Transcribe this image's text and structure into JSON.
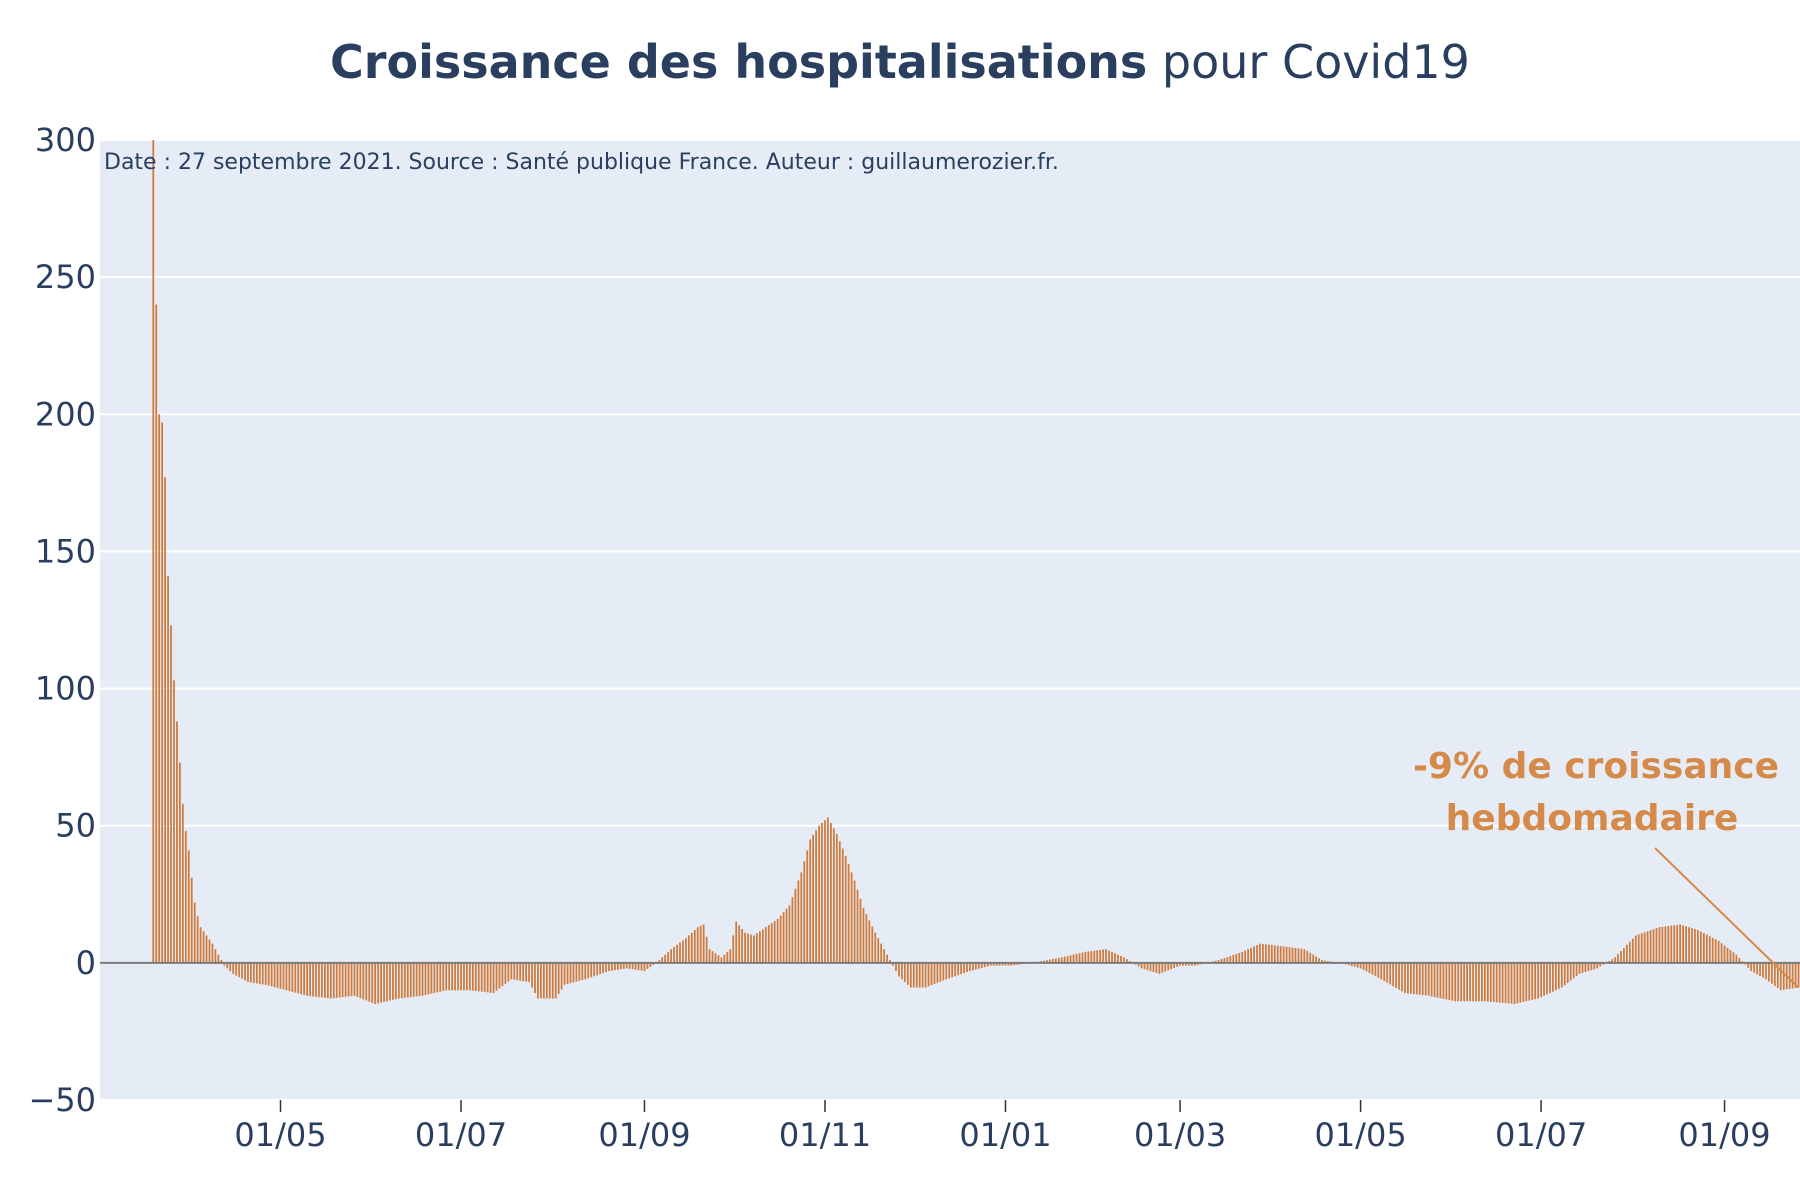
{
  "chart_data": {
    "type": "bar",
    "title_bold": "Croissance des hospitalisations",
    "title_rest": " pour Covid19",
    "subtitle": "Date : 27 septembre 2021. Source : Santé publique France. Auteur : guillaumerozier.fr.",
    "xlabel": "",
    "ylabel": "",
    "x_start": "2020-03-19",
    "x_end": "2021-09-26",
    "ylim": [
      -50,
      300
    ],
    "yticks": [
      -50,
      0,
      50,
      100,
      150,
      200,
      250,
      300
    ],
    "ytick_labels": [
      "−50",
      "0",
      "50",
      "100",
      "150",
      "200",
      "250",
      "300"
    ],
    "xtick_labels": [
      "01/05",
      "01/07",
      "01/09",
      "01/11",
      "01/01",
      "01/03",
      "01/05",
      "01/07",
      "01/09"
    ],
    "xtick_dates": [
      "2020-05-01",
      "2020-07-01",
      "2020-09-01",
      "2020-11-01",
      "2021-01-01",
      "2021-03-01",
      "2021-05-01",
      "2021-07-01",
      "2021-09-01"
    ],
    "grid": true,
    "colors": {
      "bar": "#d07a3c",
      "annotation": "#d68a4a",
      "plot_bg": "#e5ecf6",
      "grid": "#ffffff",
      "zero_line": "#7a7a7a",
      "text": "#2a3f5f"
    },
    "annotation": {
      "line1": "-9% de croissance",
      "line2": "hebdomadaire"
    },
    "series": [
      {
        "anchors": [
          [
            "2020-03-19",
            300
          ],
          [
            "2020-03-20",
            240
          ],
          [
            "2020-03-21",
            200
          ],
          [
            "2020-03-22",
            197
          ],
          [
            "2020-03-23",
            177
          ],
          [
            "2020-03-24",
            141
          ],
          [
            "2020-03-25",
            123
          ],
          [
            "2020-03-26",
            103
          ],
          [
            "2020-03-27",
            88
          ],
          [
            "2020-03-28",
            73
          ],
          [
            "2020-03-29",
            58
          ],
          [
            "2020-03-30",
            48
          ],
          [
            "2020-03-31",
            41
          ],
          [
            "2020-04-01",
            31
          ],
          [
            "2020-04-02",
            22
          ],
          [
            "2020-04-03",
            17
          ],
          [
            "2020-04-04",
            13
          ],
          [
            "2020-04-06",
            10
          ],
          [
            "2020-04-08",
            7
          ],
          [
            "2020-04-10",
            3
          ],
          [
            "2020-04-12",
            -1
          ],
          [
            "2020-04-15",
            -4
          ],
          [
            "2020-04-20",
            -7
          ],
          [
            "2020-04-26",
            -8
          ],
          [
            "2020-05-03",
            -10
          ],
          [
            "2020-05-10",
            -12
          ],
          [
            "2020-05-18",
            -13
          ],
          [
            "2020-05-26",
            -12
          ],
          [
            "2020-06-02",
            -15
          ],
          [
            "2020-06-10",
            -13
          ],
          [
            "2020-06-18",
            -12
          ],
          [
            "2020-06-26",
            -10
          ],
          [
            "2020-07-04",
            -10
          ],
          [
            "2020-07-12",
            -11
          ],
          [
            "2020-07-18",
            -6
          ],
          [
            "2020-07-24",
            -7
          ],
          [
            "2020-07-27",
            -13
          ],
          [
            "2020-08-02",
            -13
          ],
          [
            "2020-08-05",
            -8
          ],
          [
            "2020-08-12",
            -6
          ],
          [
            "2020-08-20",
            -3
          ],
          [
            "2020-08-26",
            -2
          ],
          [
            "2020-09-01",
            -3
          ],
          [
            "2020-09-05",
            0
          ],
          [
            "2020-09-10",
            5
          ],
          [
            "2020-09-15",
            9
          ],
          [
            "2020-09-19",
            13
          ],
          [
            "2020-09-21",
            14
          ],
          [
            "2020-09-23",
            5
          ],
          [
            "2020-09-27",
            2
          ],
          [
            "2020-09-30",
            5
          ],
          [
            "2020-10-02",
            15
          ],
          [
            "2020-10-05",
            11
          ],
          [
            "2020-10-08",
            10
          ],
          [
            "2020-10-12",
            13
          ],
          [
            "2020-10-16",
            16
          ],
          [
            "2020-10-20",
            21
          ],
          [
            "2020-10-24",
            33
          ],
          [
            "2020-10-27",
            45
          ],
          [
            "2020-10-30",
            50
          ],
          [
            "2020-11-02",
            53
          ],
          [
            "2020-11-05",
            47
          ],
          [
            "2020-11-08",
            39
          ],
          [
            "2020-11-11",
            30
          ],
          [
            "2020-11-14",
            20
          ],
          [
            "2020-11-18",
            11
          ],
          [
            "2020-11-22",
            3
          ],
          [
            "2020-11-26",
            -5
          ],
          [
            "2020-11-30",
            -9
          ],
          [
            "2020-12-05",
            -9
          ],
          [
            "2020-12-12",
            -6
          ],
          [
            "2020-12-20",
            -3
          ],
          [
            "2020-12-27",
            -1
          ],
          [
            "2021-01-03",
            -1
          ],
          [
            "2021-01-10",
            0
          ],
          [
            "2021-01-15",
            1
          ],
          [
            "2021-01-20",
            2
          ],
          [
            "2021-01-28",
            4
          ],
          [
            "2021-02-04",
            5
          ],
          [
            "2021-02-10",
            2
          ],
          [
            "2021-02-16",
            -2
          ],
          [
            "2021-02-22",
            -4
          ],
          [
            "2021-03-01",
            -1
          ],
          [
            "2021-03-06",
            -1
          ],
          [
            "2021-03-14",
            1
          ],
          [
            "2021-03-22",
            4
          ],
          [
            "2021-03-28",
            7
          ],
          [
            "2021-04-05",
            6
          ],
          [
            "2021-04-12",
            5
          ],
          [
            "2021-04-18",
            1
          ],
          [
            "2021-04-24",
            0
          ],
          [
            "2021-05-01",
            -2
          ],
          [
            "2021-05-08",
            -6
          ],
          [
            "2021-05-16",
            -11
          ],
          [
            "2021-05-24",
            -12
          ],
          [
            "2021-06-02",
            -14
          ],
          [
            "2021-06-12",
            -14
          ],
          [
            "2021-06-22",
            -15
          ],
          [
            "2021-06-30",
            -13
          ],
          [
            "2021-07-08",
            -9
          ],
          [
            "2021-07-14",
            -4
          ],
          [
            "2021-07-20",
            -2
          ],
          [
            "2021-07-26",
            2
          ],
          [
            "2021-08-02",
            10
          ],
          [
            "2021-08-10",
            13
          ],
          [
            "2021-08-17",
            14
          ],
          [
            "2021-08-23",
            12
          ],
          [
            "2021-08-30",
            8
          ],
          [
            "2021-09-05",
            3
          ],
          [
            "2021-09-10",
            -3
          ],
          [
            "2021-09-15",
            -6
          ],
          [
            "2021-09-20",
            -10
          ],
          [
            "2021-09-26",
            -9
          ]
        ]
      }
    ]
  }
}
